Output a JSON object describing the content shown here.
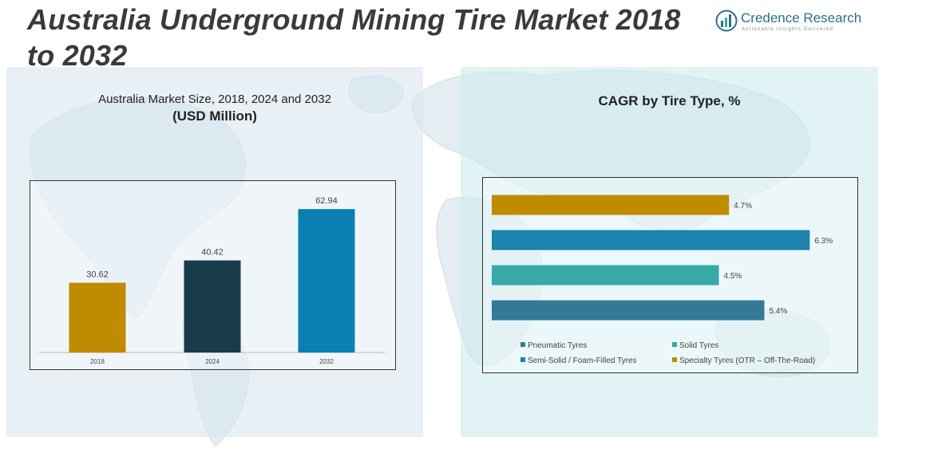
{
  "title": "Australia Underground Mining Tire Market 2018 to 2032",
  "logo": {
    "name": "Credence Research",
    "tagline": "Actionable Insights Delivered"
  },
  "left_panel": {
    "subtitle": "Australia Market Size, 2018, 2024 and 2032",
    "unit": "(USD Million)"
  },
  "right_panel": {
    "title": "CAGR by Tire Type, %"
  },
  "colors": {
    "gold": "#bf8c00",
    "navy": "#193c4b",
    "blue": "#0a80b2",
    "teal_blue": "#337a97",
    "teal": "#37a9a6",
    "mid_blue": "#1b83ad"
  },
  "chart_data": [
    {
      "type": "bar",
      "title": "Australia Market Size, 2018, 2024 and 2032",
      "ylabel": "(USD Million)",
      "categories": [
        "2018",
        "2024",
        "2032"
      ],
      "values": [
        30.62,
        40.42,
        62.94
      ],
      "value_labels": [
        "30.62",
        "40.42",
        "62.94"
      ],
      "bar_colors": [
        "#bf8c00",
        "#193c4b",
        "#0a80b2"
      ],
      "ylim": [
        0,
        70
      ],
      "grid": false
    },
    {
      "type": "bar",
      "orientation": "horizontal",
      "title": "CAGR by Tire Type, %",
      "categories": [
        "Specialty Tyres (OTR – Off-The-Road)",
        "Semi-Solid / Foam-Filled Tyres",
        "Solid Tyres",
        "Pneumatic Tyres"
      ],
      "values": [
        4.7,
        6.3,
        4.5,
        5.4
      ],
      "value_labels": [
        "4.7%",
        "6.3%",
        "4.5%",
        "5.4%"
      ],
      "bar_colors": [
        "#bf8c00",
        "#1b83ad",
        "#37a9a6",
        "#337a97"
      ],
      "xlim": [
        0,
        6.5
      ],
      "grid": false,
      "legend_position": "bottom",
      "legend": [
        {
          "label": "Pneumatic Tyres",
          "color": "#337a97"
        },
        {
          "label": "Solid Tyres",
          "color": "#37a9a6"
        },
        {
          "label": "Semi-Solid / Foam-Filled Tyres",
          "color": "#1b83ad"
        },
        {
          "label": "Specialty Tyres (OTR – Off-The-Road)",
          "color": "#bf8c00"
        }
      ]
    }
  ]
}
